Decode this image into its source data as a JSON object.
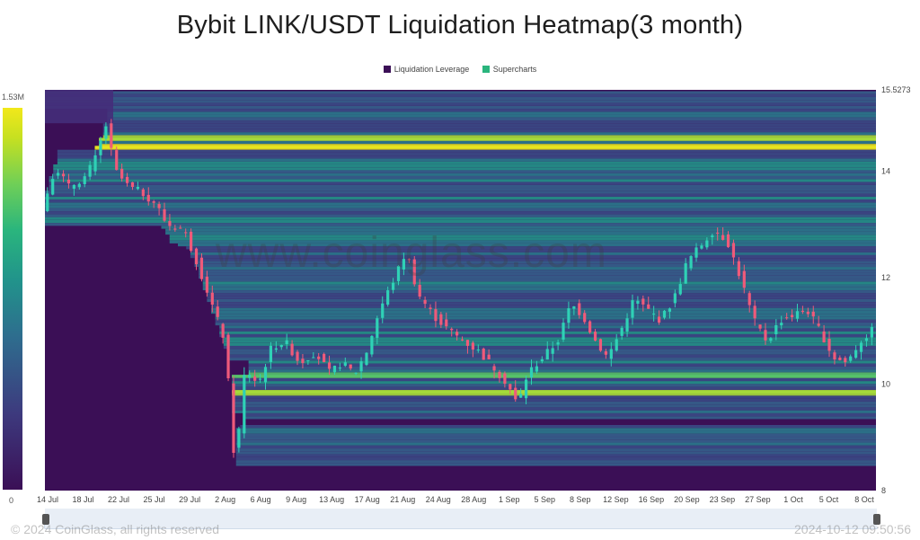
{
  "title": "Bybit LINK/USDT Liquidation Heatmap(3 month)",
  "legend": [
    {
      "label": "Liquidation Leverage",
      "color": "#3b0f56"
    },
    {
      "label": "Supercharts",
      "color": "#2ab57d"
    }
  ],
  "colorbar": {
    "max_label": "1.53M",
    "min_label": "0"
  },
  "watermark": "www.coinglass.com",
  "footer": {
    "left": "© 2024 CoinGlass, all rights reserved",
    "right": "2024-10-12 09:50:56"
  },
  "chart_data": {
    "type": "heatmap",
    "title": "Bybit LINK/USDT Liquidation Heatmap(3 month)",
    "y_ticks": [
      {
        "value": 15.5273,
        "label": "15.5273"
      },
      {
        "value": 14,
        "label": "14"
      },
      {
        "value": 12,
        "label": "12"
      },
      {
        "value": 10,
        "label": "10"
      },
      {
        "value": 8,
        "label": "8"
      }
    ],
    "ylim": [
      8,
      15.5273
    ],
    "x_ticks": [
      "14 Jul",
      "18 Jul",
      "22 Jul",
      "25 Jul",
      "29 Jul",
      "2 Aug",
      "6 Aug",
      "9 Aug",
      "13 Aug",
      "17 Aug",
      "21 Aug",
      "24 Aug",
      "28 Aug",
      "1 Sep",
      "5 Sep",
      "8 Sep",
      "12 Sep",
      "16 Sep",
      "20 Sep",
      "23 Sep",
      "27 Sep",
      "1 Oct",
      "5 Oct",
      "8 Oct"
    ],
    "price_series": [
      {
        "x": 0,
        "y": 13.3
      },
      {
        "x": 0.8,
        "y": 14.1
      },
      {
        "x": 1.6,
        "y": 13.7
      },
      {
        "x": 2.6,
        "y": 13.9
      },
      {
        "x": 3.3,
        "y": 14.3
      },
      {
        "x": 3.8,
        "y": 14.9
      },
      {
        "x": 4.4,
        "y": 14.0
      },
      {
        "x": 5.2,
        "y": 13.7
      },
      {
        "x": 6.0,
        "y": 13.6
      },
      {
        "x": 6.8,
        "y": 13.4
      },
      {
        "x": 7.5,
        "y": 13.0
      },
      {
        "x": 8.5,
        "y": 12.9
      },
      {
        "x": 9.3,
        "y": 12.3
      },
      {
        "x": 10.2,
        "y": 11.5
      },
      {
        "x": 11.0,
        "y": 10.8
      },
      {
        "x": 11.6,
        "y": 8.4
      },
      {
        "x": 12.2,
        "y": 10.3
      },
      {
        "x": 13.0,
        "y": 10.0
      },
      {
        "x": 13.8,
        "y": 10.7
      },
      {
        "x": 14.6,
        "y": 10.8
      },
      {
        "x": 15.5,
        "y": 10.4
      },
      {
        "x": 16.4,
        "y": 10.6
      },
      {
        "x": 17.3,
        "y": 10.2
      },
      {
        "x": 18.0,
        "y": 10.4
      },
      {
        "x": 18.8,
        "y": 10.2
      },
      {
        "x": 19.5,
        "y": 10.6
      },
      {
        "x": 20.3,
        "y": 11.4
      },
      {
        "x": 21.2,
        "y": 12.0
      },
      {
        "x": 21.9,
        "y": 12.5
      },
      {
        "x": 22.6,
        "y": 11.7
      },
      {
        "x": 23.5,
        "y": 11.3
      },
      {
        "x": 24.5,
        "y": 11.0
      },
      {
        "x": 25.4,
        "y": 10.8
      },
      {
        "x": 26.3,
        "y": 10.6
      },
      {
        "x": 27.2,
        "y": 10.3
      },
      {
        "x": 28.0,
        "y": 10.0
      },
      {
        "x": 28.6,
        "y": 9.6
      },
      {
        "x": 29.2,
        "y": 10.2
      },
      {
        "x": 30.1,
        "y": 10.5
      },
      {
        "x": 31.0,
        "y": 10.8
      },
      {
        "x": 31.8,
        "y": 11.5
      },
      {
        "x": 32.5,
        "y": 11.3
      },
      {
        "x": 33.3,
        "y": 10.8
      },
      {
        "x": 34.0,
        "y": 10.5
      },
      {
        "x": 34.8,
        "y": 11.0
      },
      {
        "x": 35.6,
        "y": 11.6
      },
      {
        "x": 36.4,
        "y": 11.4
      },
      {
        "x": 37.2,
        "y": 11.2
      },
      {
        "x": 38.0,
        "y": 11.6
      },
      {
        "x": 38.8,
        "y": 12.3
      },
      {
        "x": 39.6,
        "y": 12.6
      },
      {
        "x": 40.4,
        "y": 12.9
      },
      {
        "x": 41.2,
        "y": 12.7
      },
      {
        "x": 42.0,
        "y": 12.0
      },
      {
        "x": 42.8,
        "y": 11.2
      },
      {
        "x": 43.6,
        "y": 10.8
      },
      {
        "x": 44.4,
        "y": 11.2
      },
      {
        "x": 45.2,
        "y": 11.3
      },
      {
        "x": 46.0,
        "y": 11.4
      },
      {
        "x": 46.8,
        "y": 11.0
      },
      {
        "x": 47.6,
        "y": 10.5
      },
      {
        "x": 48.4,
        "y": 10.4
      },
      {
        "x": 49.2,
        "y": 10.8
      },
      {
        "x": 49.9,
        "y": 11.0
      }
    ],
    "x_range": [
      0,
      50
    ],
    "liquidation_bands": [
      {
        "y": 14.45,
        "intensity": 1.0
      },
      {
        "y": 14.6,
        "intensity": 0.85
      },
      {
        "y": 14.1,
        "intensity": 0.55
      },
      {
        "y": 13.1,
        "intensity": 0.5
      },
      {
        "y": 12.85,
        "intensity": 0.45
      },
      {
        "y": 10.15,
        "intensity": 0.8
      },
      {
        "y": 9.85,
        "intensity": 0.9
      },
      {
        "y": 10.8,
        "intensity": 0.5
      },
      {
        "y": 11.35,
        "intensity": 0.45
      }
    ]
  }
}
